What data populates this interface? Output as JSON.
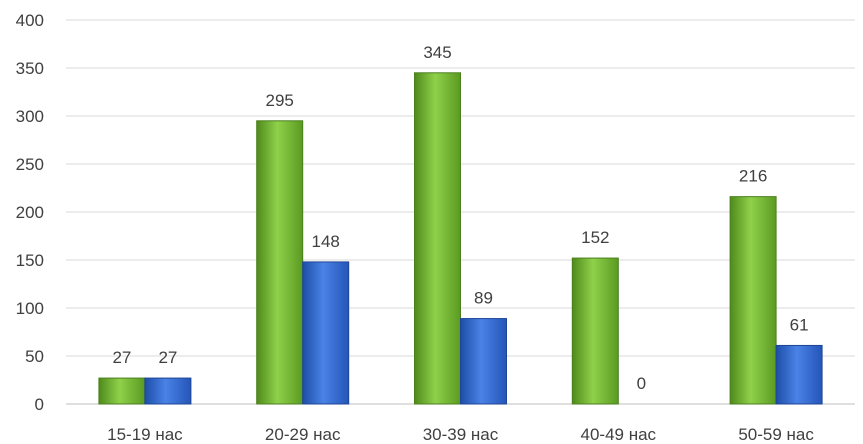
{
  "chart_data": {
    "type": "bar",
    "categories": [
      "15-19 нас",
      "20-29 нас",
      "30-39 нас",
      "40-49 нас",
      "50-59 нас"
    ],
    "series": [
      {
        "values": [
          27,
          295,
          345,
          152,
          216
        ],
        "color": "#6bab2c"
      },
      {
        "values": [
          27,
          148,
          89,
          0,
          61
        ],
        "color": "#2e62c9"
      }
    ],
    "ylim": [
      0,
      400
    ],
    "yticks": [
      0,
      50,
      100,
      150,
      200,
      250,
      300,
      350,
      400
    ],
    "grid": true,
    "data_labels": true
  }
}
